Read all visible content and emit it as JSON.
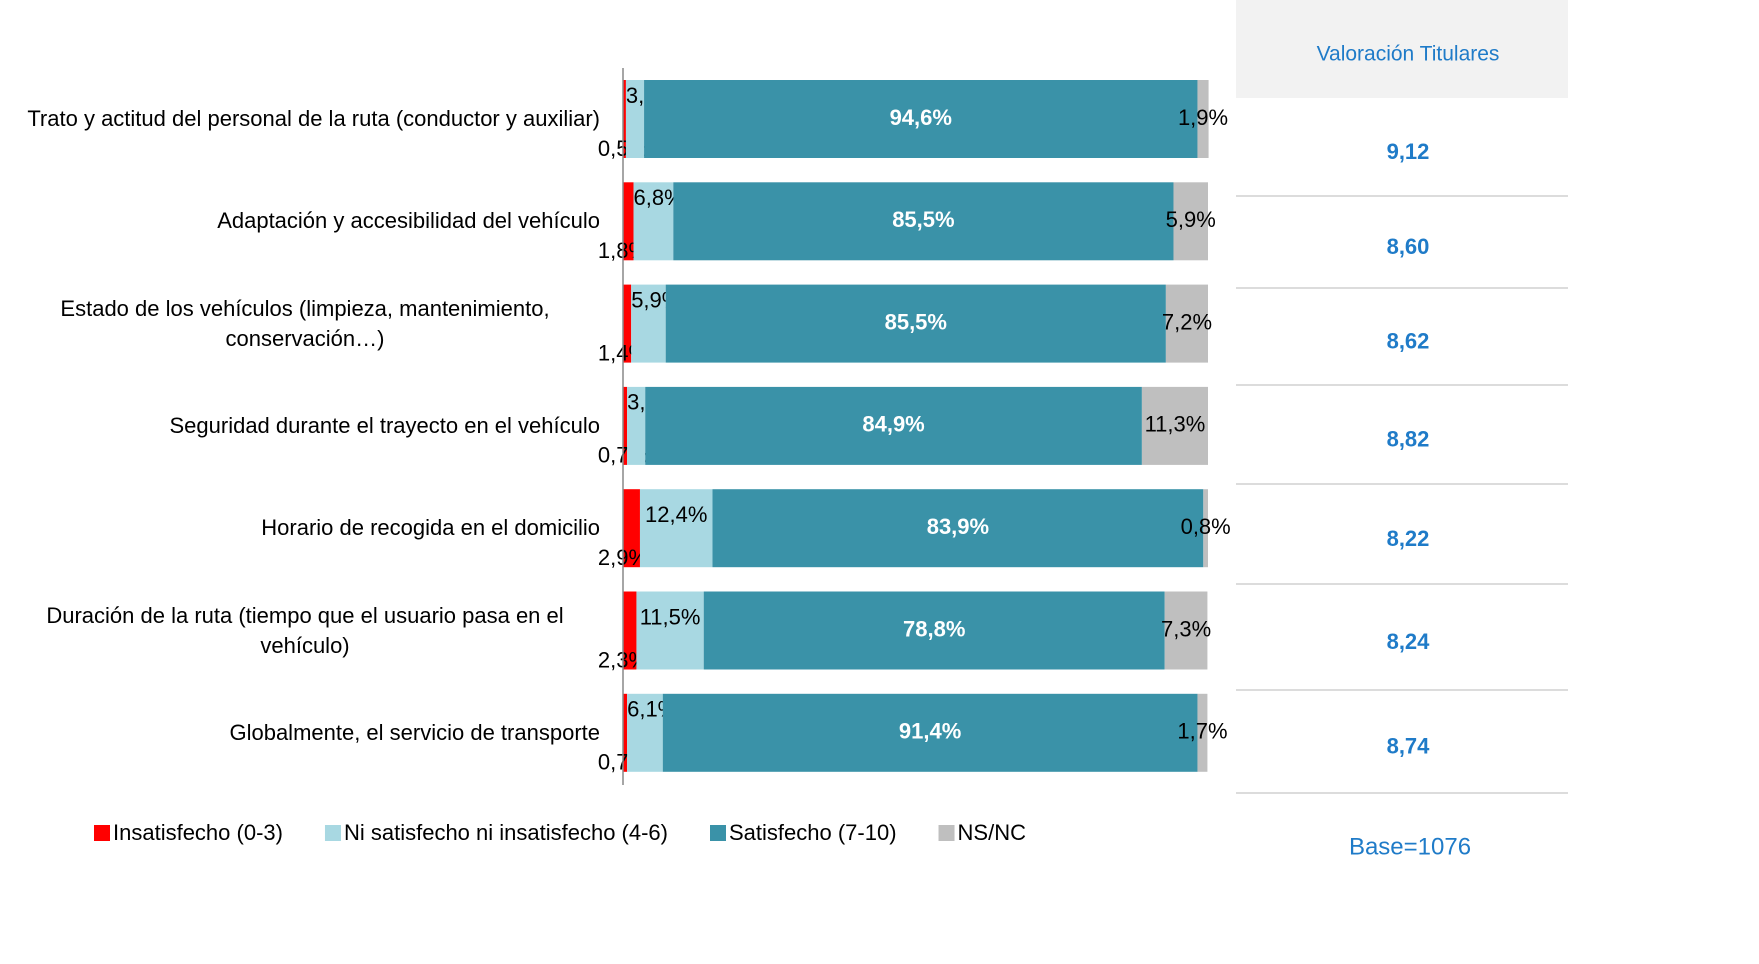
{
  "chart_data": {
    "type": "bar",
    "orientation": "horizontal",
    "stacked": true,
    "categories": [
      "Trato y actitud del personal de la ruta (conductor y auxiliar)",
      "Adaptación y accesibilidad del vehículo",
      "Estado de los vehículos (limpieza, mantenimiento, conservación…)",
      "Seguridad durante el trayecto en el vehículo",
      "Horario de recogida en el domicilio",
      "Duración de la ruta (tiempo que el usuario pasa en el vehículo)",
      "Globalmente, el servicio de transporte"
    ],
    "series": [
      {
        "name": "Insatisfecho (0-3)",
        "color": "#ff0000",
        "values": [
          0.5,
          1.8,
          1.4,
          0.7,
          2.9,
          2.3,
          0.7
        ],
        "value_labels": [
          "0,5%",
          "1,8%",
          "1,4%",
          "0,7%",
          "2,9%",
          "2,3%",
          "0,7%"
        ]
      },
      {
        "name": "Ni satisfecho ni insatisfecho (4-6)",
        "color": "#a8d8e2",
        "values": [
          3.1,
          6.8,
          5.9,
          3.1,
          12.4,
          11.5,
          6.1
        ],
        "value_labels": [
          "3,1%",
          "6,8%",
          "5,9%",
          "3,1%",
          "12,4%",
          "11,5%",
          "6,1%"
        ]
      },
      {
        "name": "Satisfecho (7-10)",
        "color": "#3a92a8",
        "values": [
          94.6,
          85.5,
          85.5,
          84.9,
          83.9,
          78.8,
          91.4
        ],
        "value_labels": [
          "94,6%",
          "85,5%",
          "85,5%",
          "84,9%",
          "83,9%",
          "78,8%",
          "91,4%"
        ]
      },
      {
        "name": "NS/NC",
        "color": "#bfbfbf",
        "values": [
          1.9,
          5.9,
          7.2,
          11.3,
          0.8,
          7.3,
          1.7
        ],
        "value_labels": [
          "1,9%",
          "5,9%",
          "7,2%",
          "11,3%",
          "0,8%",
          "7,3%",
          "1,7%"
        ]
      }
    ],
    "xlim": [
      0,
      100
    ],
    "legend": "bottom"
  },
  "side_table": {
    "header": "Valoración Titulares",
    "values": [
      "9,12",
      "8,60",
      "8,62",
      "8,82",
      "8,22",
      "8,24",
      "8,74"
    ],
    "note": "Base=1076"
  }
}
